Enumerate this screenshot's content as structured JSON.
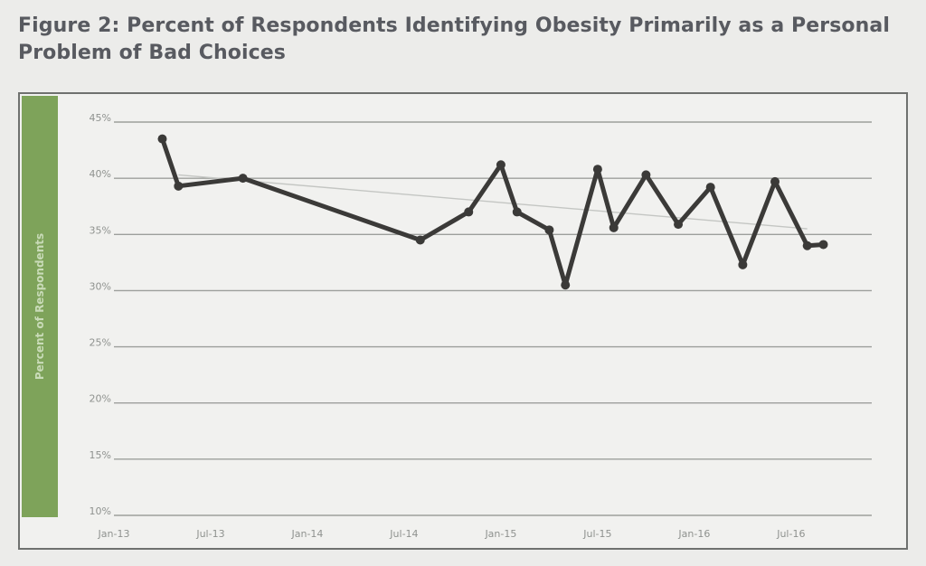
{
  "page": {
    "title": "Figure 2: Percent of Respondents Identifying Obesity Primarily as a Personal Problem of Bad Choices"
  },
  "chart_data": {
    "type": "line",
    "title": "Figure 2: Percent of Respondents Identifying Obesity Primarily as a Personal Problem of Bad Choices",
    "xlabel": "",
    "ylabel": "Percent of Respondents",
    "ylim": [
      10,
      45
    ],
    "yticks": [
      10,
      15,
      20,
      25,
      30,
      35,
      40,
      45
    ],
    "ytick_labels": [
      "10%",
      "15%",
      "20%",
      "25%",
      "30%",
      "35%",
      "40%",
      "45%"
    ],
    "xlim": [
      "2013-01",
      "2016-12"
    ],
    "xticks": [
      "2013-01",
      "2013-07",
      "2014-01",
      "2014-07",
      "2015-01",
      "2015-07",
      "2016-01",
      "2016-07"
    ],
    "xtick_labels": [
      "Jan-13",
      "Jul-13",
      "Jan-14",
      "Jul-14",
      "Jan-15",
      "Jul-15",
      "Jan-16",
      "Jul-16"
    ],
    "grid": true,
    "legend": "none",
    "series": [
      {
        "x": [
          "2013-04",
          "2013-05",
          "2013-09",
          "2014-08",
          "2014-11",
          "2015-01",
          "2015-02",
          "2015-04",
          "2015-05",
          "2015-07",
          "2015-08",
          "2015-10",
          "2015-12",
          "2016-02",
          "2016-04",
          "2016-06",
          "2016-08",
          "2016-09"
        ],
        "values": [
          43.5,
          39.3,
          40.0,
          34.5,
          37.0,
          41.2,
          37.0,
          35.4,
          30.5,
          40.8,
          35.6,
          40.3,
          35.9,
          39.2,
          32.3,
          39.7,
          34.0,
          34.1
        ],
        "color": "#3b3a38"
      },
      {
        "type": "trendline",
        "x": [
          "2013-05",
          "2016-08"
        ],
        "values": [
          40.3,
          35.5
        ],
        "color": "#c4c6c3"
      }
    ]
  }
}
